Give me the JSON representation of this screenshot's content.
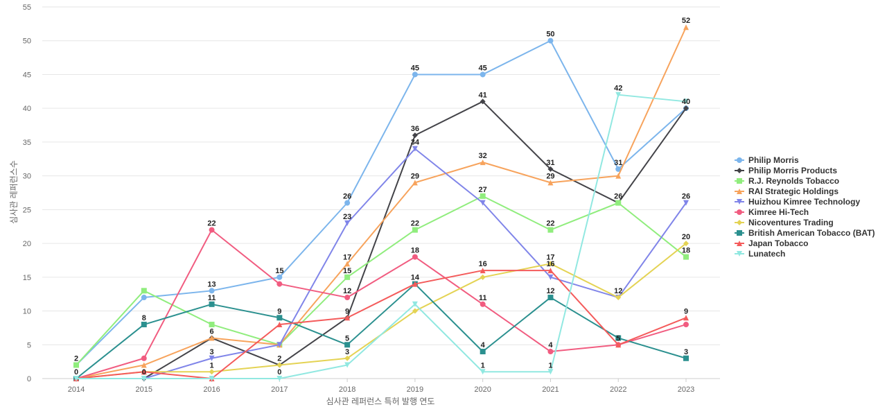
{
  "chart_data": {
    "type": "line",
    "title": "",
    "xlabel": "심사관 레퍼런스 특허 발행 연도",
    "ylabel": "심사관 레퍼런스수",
    "x": [
      2014,
      2015,
      2016,
      2017,
      2018,
      2019,
      2020,
      2021,
      2022,
      2023
    ],
    "x_tick_labels": [
      "2014",
      "2015",
      "2016",
      "2017",
      "2018",
      "2019",
      "2020",
      "2021",
      "2022",
      "2023"
    ],
    "ylim": [
      0,
      55
    ],
    "y_ticks": [
      0,
      5,
      10,
      15,
      20,
      25,
      30,
      35,
      40,
      45,
      50,
      55
    ],
    "y_tick_labels": [
      "0",
      "5",
      "10",
      "15",
      "20",
      "25",
      "30",
      "35",
      "40",
      "45",
      "50",
      "55"
    ],
    "grid": true,
    "legend_position": "right",
    "series": [
      {
        "name": "Philip Morris",
        "color": "#7cb5ec",
        "marker": "circle",
        "values": [
          2,
          12,
          13,
          15,
          26,
          45,
          45,
          50,
          31,
          40
        ],
        "labeled": [
          false,
          false,
          true,
          true,
          true,
          true,
          true,
          true,
          true,
          true
        ]
      },
      {
        "name": "Philip Morris Products",
        "color": "#434348",
        "marker": "diamond",
        "values": [
          0,
          0,
          6,
          2,
          9,
          36,
          41,
          31,
          26,
          40
        ],
        "labeled": [
          false,
          true,
          true,
          true,
          true,
          true,
          true,
          true,
          false,
          false
        ]
      },
      {
        "name": "R.J. Reynolds Tobacco",
        "color": "#90ed7d",
        "marker": "square",
        "values": [
          2,
          13,
          8,
          5,
          15,
          22,
          27,
          22,
          26,
          18
        ],
        "labeled": [
          true,
          false,
          false,
          false,
          true,
          true,
          true,
          true,
          true,
          true
        ]
      },
      {
        "name": "RAI Strategic Holdings",
        "color": "#f7a35c",
        "marker": "triangle",
        "values": [
          0,
          2,
          6,
          5,
          17,
          29,
          32,
          29,
          30,
          52
        ],
        "labeled": [
          false,
          false,
          false,
          false,
          true,
          true,
          true,
          true,
          false,
          true
        ]
      },
      {
        "name": "Huizhou Kimree Technology",
        "color": "#8085e9",
        "marker": "triangle-down",
        "values": [
          0,
          0,
          3,
          5,
          23,
          34,
          26,
          15,
          12,
          26
        ],
        "labeled": [
          false,
          false,
          true,
          false,
          true,
          true,
          false,
          false,
          true,
          true
        ]
      },
      {
        "name": "Kimree Hi-Tech",
        "color": "#f15c80",
        "marker": "circle",
        "values": [
          0,
          3,
          22,
          14,
          12,
          18,
          11,
          4,
          5,
          8
        ],
        "labeled": [
          false,
          false,
          true,
          false,
          true,
          true,
          true,
          true,
          false,
          false
        ]
      },
      {
        "name": "Nicoventures Trading",
        "color": "#e4d354",
        "marker": "diamond",
        "values": [
          0,
          1,
          1,
          2,
          3,
          10,
          15,
          17,
          12,
          20
        ],
        "labeled": [
          false,
          false,
          true,
          false,
          true,
          false,
          false,
          true,
          false,
          true
        ]
      },
      {
        "name": "British American Tobacco (BAT)",
        "color": "#2b908f",
        "marker": "square",
        "values": [
          0,
          8,
          11,
          9,
          5,
          14,
          4,
          12,
          6,
          3
        ],
        "labeled": [
          true,
          true,
          true,
          true,
          true,
          true,
          true,
          true,
          false,
          true
        ]
      },
      {
        "name": "Japan Tobacco",
        "color": "#f45b5b",
        "marker": "triangle",
        "values": [
          0,
          1,
          0,
          8,
          9,
          14,
          16,
          16,
          5,
          9
        ],
        "labeled": [
          false,
          false,
          false,
          false,
          false,
          false,
          true,
          true,
          true,
          true
        ]
      },
      {
        "name": "Lunatech",
        "color": "#91e8e1",
        "marker": "triangle-down",
        "values": [
          0,
          0,
          0,
          0,
          2,
          11,
          1,
          1,
          42,
          41
        ],
        "labeled": [
          false,
          false,
          false,
          true,
          false,
          false,
          true,
          true,
          true,
          false
        ]
      }
    ]
  }
}
